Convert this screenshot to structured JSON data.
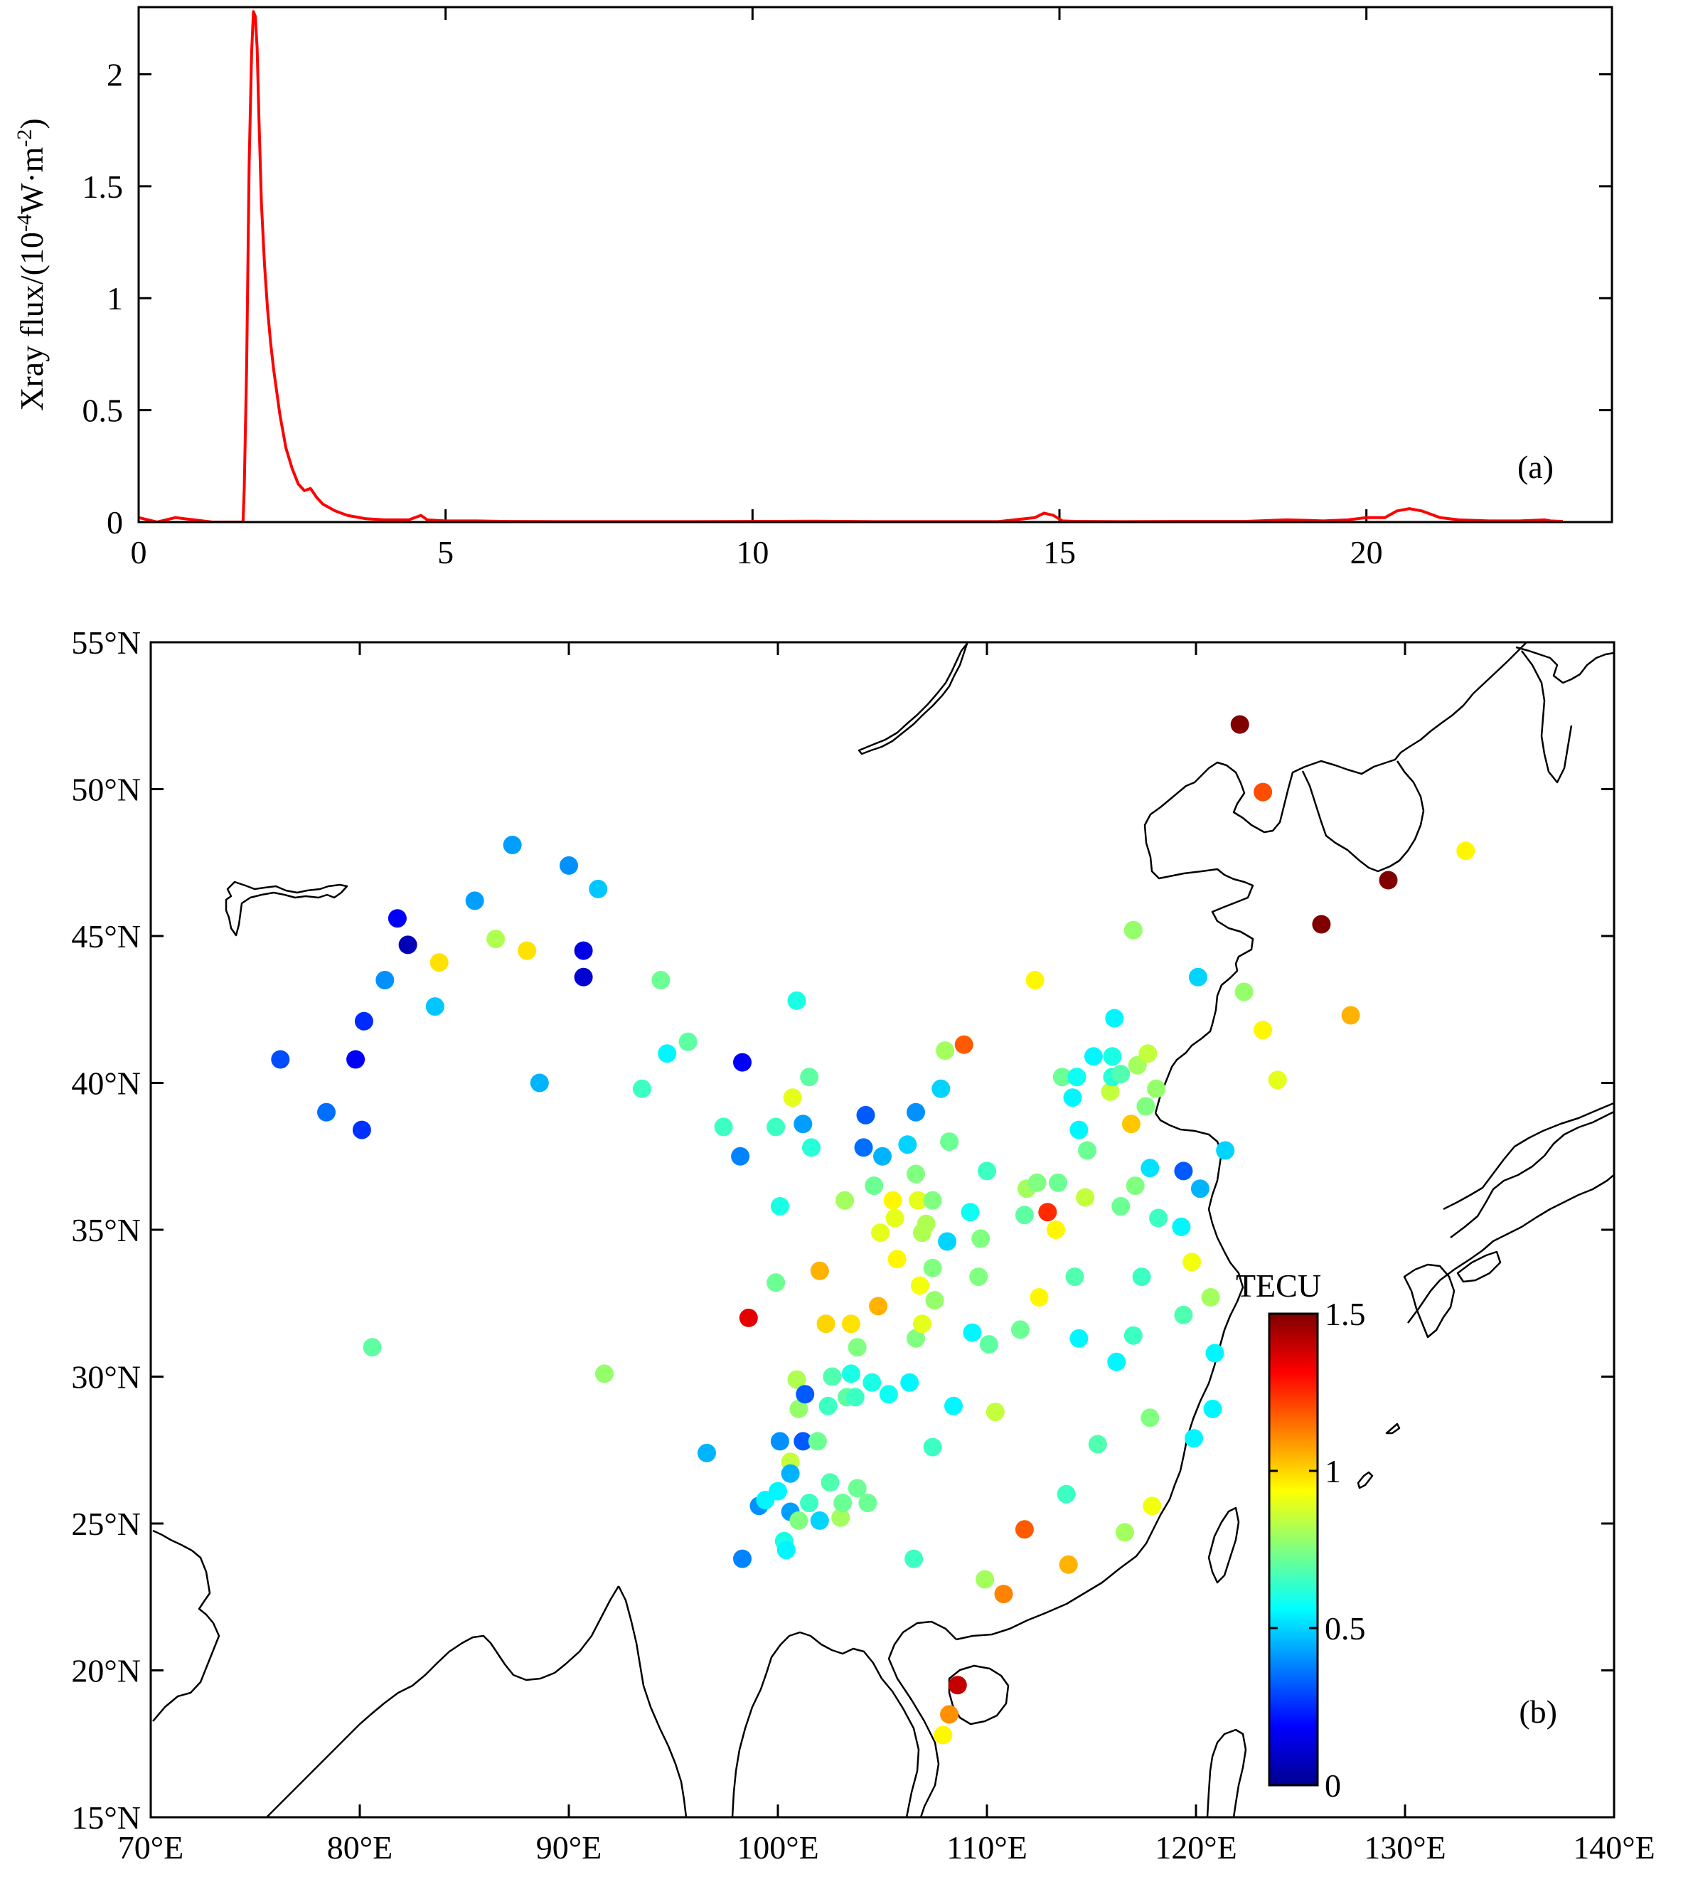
{
  "chart_data": [
    {
      "type": "line",
      "panel_label": "(a)",
      "ylabel": {
        "main": "Xray flux/(10",
        "exp1": "-4",
        "mid": "W·m",
        "exp2": "-2",
        "end": ")"
      },
      "xlabel": "",
      "xlim": [
        0,
        24
      ],
      "ylim": [
        0,
        2.3
      ],
      "x_ticks": [
        0,
        5,
        10,
        15,
        20
      ],
      "x_tick_labels": [
        "0",
        "5",
        "10",
        "15",
        "20"
      ],
      "y_ticks": [
        0,
        0.5,
        1,
        1.5,
        2
      ],
      "y_tick_labels": [
        "0",
        "0.5",
        "1",
        "1.5",
        "2"
      ],
      "color": "#ff0000",
      "series": [
        {
          "name": "Xray flux",
          "x": [
            0,
            0.3,
            0.6,
            0.9,
            1.2,
            1.5,
            1.7,
            1.72,
            1.76,
            1.8,
            1.84,
            1.87,
            1.9,
            1.93,
            1.96,
            2.0,
            2.05,
            2.1,
            2.15,
            2.2,
            2.3,
            2.4,
            2.5,
            2.6,
            2.7,
            2.8,
            2.9,
            3.0,
            3.2,
            3.4,
            3.7,
            4.0,
            4.4,
            4.6,
            4.65,
            4.7,
            5.0,
            5.5,
            6.0,
            7.0,
            8.0,
            9.0,
            10.0,
            11.0,
            12.0,
            13.0,
            14.0,
            14.6,
            14.75,
            14.9,
            15.05,
            15.3,
            16.0,
            17.0,
            18.0,
            18.7,
            19.0,
            19.3,
            19.7,
            20.0,
            20.3,
            20.5,
            20.7,
            20.9,
            21.2,
            21.5,
            22.0,
            22.5,
            22.9,
            23.0,
            23.2
          ],
          "y": [
            0.02,
            0.0,
            0.02,
            0.01,
            0.0,
            0.0,
            0.0,
            0.15,
            0.7,
            1.6,
            2.1,
            2.28,
            2.26,
            2.12,
            1.8,
            1.42,
            1.15,
            0.95,
            0.8,
            0.68,
            0.48,
            0.33,
            0.24,
            0.17,
            0.14,
            0.15,
            0.11,
            0.08,
            0.05,
            0.03,
            0.015,
            0.01,
            0.01,
            0.03,
            0.02,
            0.01,
            0.005,
            0.005,
            0.003,
            0.002,
            0.002,
            0.002,
            0.003,
            0.004,
            0.002,
            0.002,
            0.002,
            0.02,
            0.04,
            0.03,
            0.005,
            0.003,
            0.002,
            0.003,
            0.003,
            0.01,
            0.008,
            0.005,
            0.01,
            0.02,
            0.02,
            0.05,
            0.06,
            0.05,
            0.02,
            0.01,
            0.005,
            0.005,
            0.01,
            0.005,
            0.003
          ]
        }
      ]
    },
    {
      "type": "scatter",
      "panel_label": "(b)",
      "xlabel": "",
      "ylabel": "",
      "xlim": [
        70,
        140
      ],
      "ylim": [
        15,
        55
      ],
      "x_ticks": [
        70,
        80,
        90,
        100,
        110,
        120,
        130,
        140
      ],
      "x_tick_labels": [
        "70°E",
        "80°E",
        "90°E",
        "100°E",
        "110°E",
        "120°E",
        "130°E",
        "140°E"
      ],
      "y_ticks": [
        15,
        20,
        25,
        30,
        35,
        40,
        45,
        50,
        55
      ],
      "y_tick_labels": [
        "15°N",
        "20°N",
        "25°N",
        "30°N",
        "35°N",
        "40°N",
        "45°N",
        "50°N",
        "55°N"
      ],
      "colorbar": {
        "label": "TECU",
        "range": [
          0,
          1.5
        ],
        "tick_values": [
          0,
          0.5,
          1,
          1.5
        ],
        "tick_labels": [
          "0",
          "0.5",
          "1",
          "1.5"
        ],
        "colormap": "jet"
      },
      "point_fields": [
        "lon",
        "lat",
        "tecu"
      ],
      "points": [
        [
          76.2,
          40.8,
          0.3
        ],
        [
          78.4,
          39.0,
          0.35
        ],
        [
          79.8,
          40.8,
          0.18
        ],
        [
          80.1,
          38.4,
          0.26
        ],
        [
          80.2,
          42.1,
          0.25
        ],
        [
          81.2,
          43.5,
          0.4
        ],
        [
          81.8,
          45.6,
          0.18
        ],
        [
          82.3,
          44.7,
          0.08
        ],
        [
          83.6,
          42.6,
          0.48
        ],
        [
          83.8,
          44.1,
          0.98
        ],
        [
          85.5,
          46.2,
          0.42
        ],
        [
          86.5,
          44.9,
          0.82
        ],
        [
          87.3,
          48.1,
          0.42
        ],
        [
          88.0,
          44.5,
          0.98
        ],
        [
          88.6,
          40.0,
          0.45
        ],
        [
          90.0,
          47.4,
          0.4
        ],
        [
          90.7,
          43.6,
          0.12
        ],
        [
          90.7,
          44.5,
          0.15
        ],
        [
          91.4,
          46.6,
          0.48
        ],
        [
          80.6,
          31.0,
          0.7
        ],
        [
          91.7,
          30.1,
          0.78
        ],
        [
          93.5,
          39.8,
          0.65
        ],
        [
          94.4,
          43.5,
          0.72
        ],
        [
          94.7,
          41.0,
          0.55
        ],
        [
          95.7,
          41.4,
          0.7
        ],
        [
          96.6,
          27.4,
          0.45
        ],
        [
          97.4,
          38.5,
          0.65
        ],
        [
          98.2,
          37.5,
          0.38
        ],
        [
          98.3,
          40.7,
          0.18
        ],
        [
          98.3,
          23.8,
          0.38
        ],
        [
          98.6,
          32.0,
          1.35
        ],
        [
          99.1,
          25.6,
          0.4
        ],
        [
          99.4,
          25.8,
          0.55
        ],
        [
          99.9,
          38.5,
          0.65
        ],
        [
          99.9,
          33.2,
          0.72
        ],
        [
          100.0,
          26.1,
          0.55
        ],
        [
          100.1,
          27.8,
          0.4
        ],
        [
          100.1,
          35.8,
          0.6
        ],
        [
          100.3,
          24.4,
          0.6
        ],
        [
          100.4,
          24.1,
          0.55
        ],
        [
          100.6,
          27.1,
          0.85
        ],
        [
          100.6,
          25.4,
          0.42
        ],
        [
          100.6,
          26.7,
          0.45
        ],
        [
          100.7,
          39.5,
          0.9
        ],
        [
          100.9,
          42.8,
          0.6
        ],
        [
          100.9,
          29.9,
          0.82
        ],
        [
          101.0,
          28.9,
          0.78
        ],
        [
          101.0,
          25.1,
          0.75
        ],
        [
          101.2,
          38.6,
          0.42
        ],
        [
          101.2,
          27.8,
          0.32
        ],
        [
          101.3,
          29.4,
          0.32
        ],
        [
          101.5,
          40.2,
          0.7
        ],
        [
          101.5,
          25.7,
          0.65
        ],
        [
          101.6,
          37.8,
          0.62
        ],
        [
          101.9,
          27.8,
          0.72
        ],
        [
          102.0,
          33.6,
          1.05
        ],
        [
          102.0,
          25.1,
          0.5
        ],
        [
          102.3,
          31.8,
          1.0
        ],
        [
          102.4,
          29.0,
          0.65
        ],
        [
          102.5,
          26.4,
          0.68
        ],
        [
          102.6,
          30.0,
          0.68
        ],
        [
          103.0,
          25.2,
          0.8
        ],
        [
          103.1,
          25.7,
          0.72
        ],
        [
          103.2,
          36.0,
          0.8
        ],
        [
          103.3,
          29.3,
          0.7
        ],
        [
          103.5,
          31.8,
          0.98
        ],
        [
          103.5,
          30.1,
          0.6
        ],
        [
          103.7,
          29.3,
          0.65
        ],
        [
          103.8,
          31.0,
          0.75
        ],
        [
          103.8,
          26.2,
          0.72
        ],
        [
          104.1,
          37.8,
          0.35
        ],
        [
          104.2,
          38.9,
          0.32
        ],
        [
          104.3,
          25.7,
          0.72
        ],
        [
          104.5,
          29.8,
          0.6
        ],
        [
          104.6,
          36.5,
          0.72
        ],
        [
          104.8,
          32.4,
          1.05
        ],
        [
          104.9,
          34.9,
          0.9
        ],
        [
          105.0,
          37.5,
          0.45
        ],
        [
          105.3,
          29.4,
          0.58
        ],
        [
          105.5,
          36.0,
          0.95
        ],
        [
          105.6,
          35.4,
          0.9
        ],
        [
          105.7,
          34.0,
          0.95
        ],
        [
          106.2,
          37.9,
          0.5
        ],
        [
          106.3,
          29.8,
          0.55
        ],
        [
          106.5,
          23.8,
          0.65
        ],
        [
          106.6,
          39.0,
          0.4
        ],
        [
          106.6,
          36.9,
          0.75
        ],
        [
          106.6,
          31.3,
          0.75
        ],
        [
          106.7,
          36.0,
          0.9
        ],
        [
          106.8,
          33.1,
          0.92
        ],
        [
          106.9,
          34.9,
          0.82
        ],
        [
          106.9,
          31.8,
          0.9
        ],
        [
          107.1,
          35.2,
          0.82
        ],
        [
          107.4,
          33.7,
          0.75
        ],
        [
          107.4,
          36.0,
          0.75
        ],
        [
          107.4,
          27.6,
          0.65
        ],
        [
          107.5,
          32.6,
          0.78
        ],
        [
          107.8,
          39.8,
          0.5
        ],
        [
          108.0,
          41.1,
          0.8
        ],
        [
          108.1,
          34.6,
          0.5
        ],
        [
          108.2,
          38.0,
          0.72
        ],
        [
          108.4,
          29.0,
          0.55
        ],
        [
          108.6,
          19.5,
          1.4
        ],
        [
          108.9,
          41.3,
          1.18
        ],
        [
          109.2,
          35.6,
          0.58
        ],
        [
          109.3,
          31.5,
          0.55
        ],
        [
          109.6,
          33.4,
          0.75
        ],
        [
          109.7,
          34.7,
          0.75
        ],
        [
          109.9,
          23.1,
          0.8
        ],
        [
          110.0,
          37.0,
          0.65
        ],
        [
          110.1,
          31.1,
          0.7
        ],
        [
          110.4,
          28.8,
          0.85
        ],
        [
          110.8,
          22.6,
          1.12
        ],
        [
          111.6,
          31.6,
          0.72
        ],
        [
          111.8,
          35.5,
          0.7
        ],
        [
          111.8,
          24.8,
          1.18
        ],
        [
          111.9,
          36.4,
          0.8
        ],
        [
          112.3,
          43.5,
          0.95
        ],
        [
          112.4,
          36.6,
          0.75
        ],
        [
          112.5,
          32.7,
          0.95
        ],
        [
          112.9,
          35.6,
          1.25
        ],
        [
          113.3,
          35.0,
          0.95
        ],
        [
          113.4,
          36.6,
          0.72
        ],
        [
          113.6,
          40.2,
          0.72
        ],
        [
          113.8,
          26.0,
          0.65
        ],
        [
          113.9,
          23.6,
          1.05
        ],
        [
          114.1,
          39.5,
          0.55
        ],
        [
          114.2,
          33.4,
          0.68
        ],
        [
          114.3,
          40.2,
          0.58
        ],
        [
          114.4,
          38.4,
          0.55
        ],
        [
          114.4,
          31.3,
          0.55
        ],
        [
          114.7,
          36.1,
          0.85
        ],
        [
          114.8,
          37.7,
          0.72
        ],
        [
          115.1,
          40.9,
          0.55
        ],
        [
          115.3,
          27.7,
          0.68
        ],
        [
          115.9,
          39.7,
          0.85
        ],
        [
          116.0,
          40.2,
          0.62
        ],
        [
          116.0,
          40.9,
          0.6
        ],
        [
          116.1,
          42.2,
          0.55
        ],
        [
          116.2,
          30.5,
          0.55
        ],
        [
          116.4,
          40.3,
          0.68
        ],
        [
          116.4,
          35.8,
          0.72
        ],
        [
          116.6,
          24.7,
          0.8
        ],
        [
          116.9,
          38.6,
          1.02
        ],
        [
          117.0,
          45.2,
          0.78
        ],
        [
          117.0,
          31.4,
          0.65
        ],
        [
          117.1,
          36.5,
          0.75
        ],
        [
          117.2,
          40.6,
          0.8
        ],
        [
          117.4,
          33.4,
          0.65
        ],
        [
          117.6,
          39.2,
          0.75
        ],
        [
          117.7,
          41.0,
          0.85
        ],
        [
          117.8,
          28.6,
          0.75
        ],
        [
          117.8,
          37.1,
          0.52
        ],
        [
          117.9,
          25.6,
          0.92
        ],
        [
          118.1,
          39.8,
          0.78
        ],
        [
          118.2,
          35.4,
          0.65
        ],
        [
          119.3,
          35.1,
          0.55
        ],
        [
          119.4,
          32.1,
          0.68
        ],
        [
          119.4,
          37.0,
          0.32
        ],
        [
          119.8,
          33.9,
          0.92
        ],
        [
          119.9,
          27.9,
          0.55
        ],
        [
          120.1,
          43.6,
          0.5
        ],
        [
          120.2,
          36.4,
          0.45
        ],
        [
          120.7,
          32.7,
          0.8
        ],
        [
          120.8,
          28.9,
          0.55
        ],
        [
          120.9,
          30.8,
          0.55
        ],
        [
          121.4,
          37.7,
          0.5
        ],
        [
          122.1,
          52.2,
          1.5
        ],
        [
          122.3,
          43.1,
          0.78
        ],
        [
          123.2,
          49.9,
          1.2
        ],
        [
          123.2,
          41.8,
          0.95
        ],
        [
          123.9,
          40.1,
          0.9
        ],
        [
          126.0,
          45.4,
          1.5
        ],
        [
          127.4,
          42.3,
          1.05
        ],
        [
          129.2,
          46.9,
          1.5
        ],
        [
          132.9,
          47.9,
          0.95
        ],
        [
          108.2,
          18.5,
          1.1
        ],
        [
          107.9,
          17.8,
          0.95
        ]
      ]
    }
  ]
}
